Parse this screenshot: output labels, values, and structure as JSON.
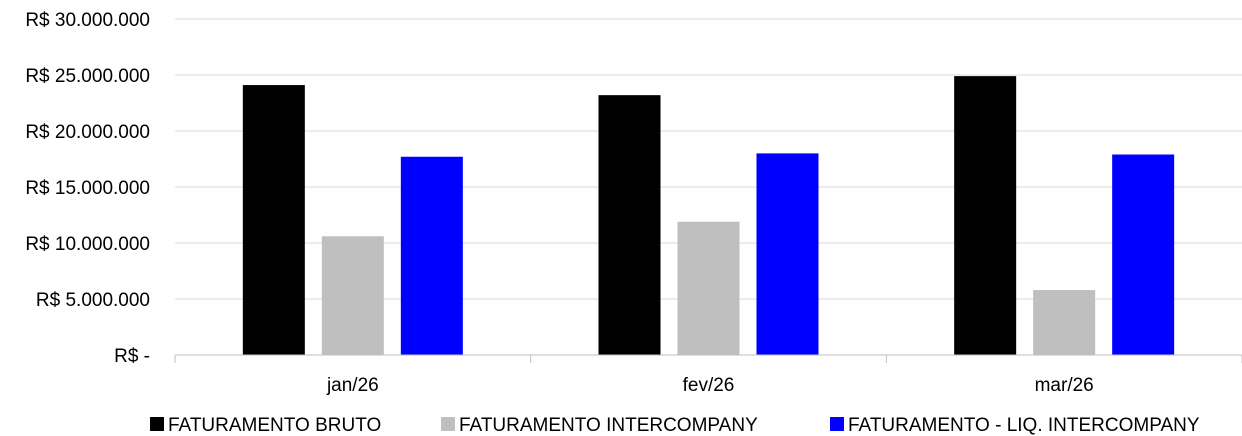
{
  "chart_data": {
    "type": "bar",
    "categories": [
      "jan/26",
      "fev/26",
      "mar/26"
    ],
    "series": [
      {
        "name": "FATURAMENTO BRUTO",
        "color": "#000000",
        "values": [
          24100000,
          23200000,
          24900000
        ]
      },
      {
        "name": "FATURAMENTO INTERCOMPANY",
        "color": "#BFBFBF",
        "values": [
          10600000,
          11900000,
          5800000
        ]
      },
      {
        "name": "FATURAMENTO - LIQ. INTERCOMPANY",
        "color": "#0000FF",
        "values": [
          17700000,
          18000000,
          17900000
        ]
      }
    ],
    "y_ticks": [
      {
        "value": 0,
        "label": "R$ -"
      },
      {
        "value": 5000000,
        "label": "R$ 5.000.000"
      },
      {
        "value": 10000000,
        "label": "R$ 10.000.000"
      },
      {
        "value": 15000000,
        "label": "R$ 15.000.000"
      },
      {
        "value": 20000000,
        "label": "R$ 20.000.000"
      },
      {
        "value": 25000000,
        "label": "R$ 25.000.000"
      },
      {
        "value": 30000000,
        "label": "R$ 30.000.000"
      }
    ],
    "ylim": [
      0,
      30000000
    ],
    "title": "",
    "xlabel": "",
    "ylabel": "",
    "grid": true,
    "legend_position": "bottom"
  }
}
